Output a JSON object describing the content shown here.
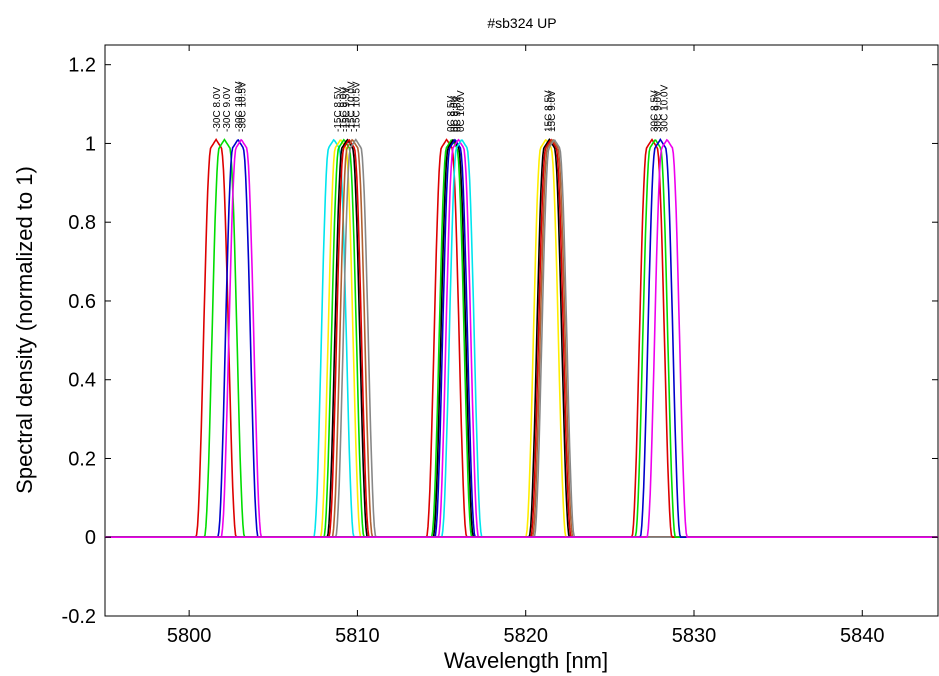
{
  "chart_data": {
    "type": "line",
    "title": "#sb324 UP",
    "xlabel": "Wavelength [nm]",
    "ylabel": "Spectral density (normalized to 1)",
    "xlim": [
      5795,
      5844.5
    ],
    "ylim": [
      -0.2,
      1.25
    ],
    "xticks": [
      5800,
      5810,
      5820,
      5830,
      5840
    ],
    "yticks": [
      -0.2,
      0,
      0.2,
      0.4,
      0.6,
      0.8,
      1,
      1.2
    ],
    "ytick_labels": [
      "-0.2",
      "0",
      "0.2",
      "0.4",
      "0.6",
      "0.8",
      "1",
      "1.2"
    ],
    "grid": false,
    "peak_width_nm": 2.4,
    "series": [
      {
        "group": 0,
        "color": "#dd0000",
        "center": 5801.6
      },
      {
        "group": 0,
        "color": "#00dd00",
        "center": 5802.1
      },
      {
        "group": 0,
        "color": "#0000cc",
        "center": 5802.9
      },
      {
        "group": 0,
        "color": "#ee00ee",
        "center": 5803.1
      },
      {
        "group": 1,
        "color": "#00e5ee",
        "center": 5808.6
      },
      {
        "group": 1,
        "color": "#ffee00",
        "center": 5809.0
      },
      {
        "group": 1,
        "color": "#00dd00",
        "center": 5809.2
      },
      {
        "group": 1,
        "color": "#000000",
        "center": 5809.4
      },
      {
        "group": 1,
        "color": "#dd0000",
        "center": 5809.5
      },
      {
        "group": 1,
        "color": "#b06030",
        "center": 5809.7
      },
      {
        "group": 1,
        "color": "#888888",
        "center": 5809.9
      },
      {
        "group": 2,
        "color": "#dd0000",
        "center": 5815.3
      },
      {
        "group": 2,
        "color": "#00dd00",
        "center": 5815.6
      },
      {
        "group": 2,
        "color": "#000000",
        "center": 5815.7
      },
      {
        "group": 2,
        "color": "#0000cc",
        "center": 5815.8
      },
      {
        "group": 2,
        "color": "#ee00ee",
        "center": 5816.0
      },
      {
        "group": 2,
        "color": "#00e5ee",
        "center": 5816.2
      },
      {
        "group": 3,
        "color": "#ffee00",
        "center": 5821.2
      },
      {
        "group": 3,
        "color": "#000000",
        "center": 5821.4
      },
      {
        "group": 3,
        "color": "#dd0000",
        "center": 5821.5
      },
      {
        "group": 3,
        "color": "#b06030",
        "center": 5821.6
      },
      {
        "group": 3,
        "color": "#888888",
        "center": 5821.7
      },
      {
        "group": 4,
        "color": "#dd0000",
        "center": 5827.5
      },
      {
        "group": 4,
        "color": "#00dd00",
        "center": 5827.7
      },
      {
        "group": 4,
        "color": "#0000cc",
        "center": 5828.0
      },
      {
        "group": 4,
        "color": "#ee00ee",
        "center": 5828.4
      }
    ],
    "peak_labels": [
      {
        "text": "-30C 8.0V",
        "x": 5801.6
      },
      {
        "text": "-30C 9.0V",
        "x": 5802.2
      },
      {
        "text": "-30C 10.0V",
        "x": 5802.9
      },
      {
        "text": "-30C 10.5V",
        "x": 5803.1
      },
      {
        "text": "-15C 8.5V",
        "x": 5808.8
      },
      {
        "text": "-15C 9.0V",
        "x": 5809.1
      },
      {
        "text": "-15C 9.5V",
        "x": 5809.3
      },
      {
        "text": "-15C 10.0V",
        "x": 5809.6
      },
      {
        "text": "-15C 10.5V",
        "x": 5809.9
      },
      {
        "text": "0C 8.5V",
        "x": 5815.5
      },
      {
        "text": "0C 9.0V",
        "x": 5815.7
      },
      {
        "text": "0C 9.5V",
        "x": 5815.9
      },
      {
        "text": "0C 10.0V",
        "x": 5816.1
      },
      {
        "text": "15C 8.5V",
        "x": 5821.3
      },
      {
        "text": "15C 9.0V",
        "x": 5821.5
      },
      {
        "text": "30C 8.5V",
        "x": 5827.6
      },
      {
        "text": "30C 9.0V",
        "x": 5827.8
      },
      {
        "text": "30C 10.0V",
        "x": 5828.2
      }
    ]
  }
}
